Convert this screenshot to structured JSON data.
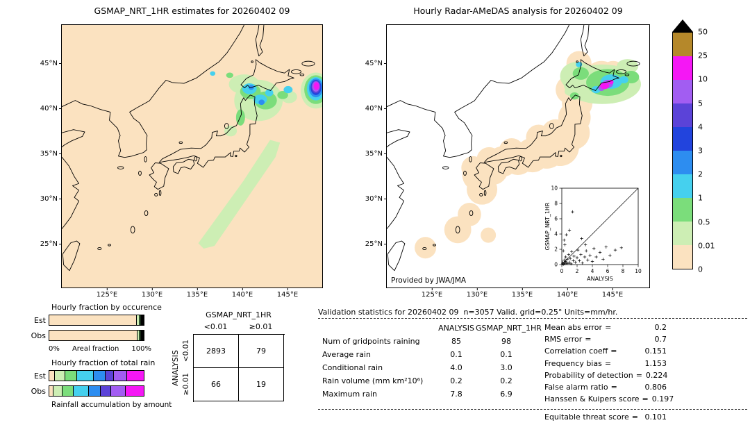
{
  "palette": {
    "peach": "#fbe2c0",
    "palegreen": "#cdeeb4",
    "green": "#7bdd7b",
    "cyan": "#45d0ee",
    "lightblue": "#2d8df0",
    "blue": "#2244dd",
    "indigo": "#5b43d8",
    "purple": "#a25df2",
    "magenta": "#f517f5",
    "brown": "#b5882a",
    "black": "#000000"
  },
  "maps": {
    "left": {
      "lon_ticks": [
        "125°E",
        "130°E",
        "135°E",
        "140°E",
        "145°E"
      ],
      "lat_ticks": [
        "45°N",
        "40°N",
        "35°N",
        "30°N",
        "25°N"
      ],
      "features": [
        [
          "p",
          "palegreen",
          "135.8,24.4 137.0,24.7 140.5,29.8 143.8,34.6 144.3,36.2 143.2,36.5 140.2,31.9 135.2,25.0"
        ],
        [
          "e",
          "palegreen",
          141.9,
          40.9,
          2.7,
          2.3
        ],
        [
          "e",
          "palegreen",
          140.3,
          42.7,
          1.7,
          1.1
        ],
        [
          "e",
          "palegreen",
          145.3,
          41.3,
          0.9,
          0.7
        ],
        [
          "e",
          "palegreen",
          138.8,
          37.5,
          0.7,
          0.6
        ],
        [
          "e",
          "green",
          141.0,
          41.9,
          1.15,
          0.85
        ],
        [
          "e",
          "green",
          142.7,
          40.9,
          1.25,
          1.0
        ],
        [
          "e",
          "green",
          139.9,
          39.0,
          0.5,
          0.9
        ],
        [
          "e",
          "green",
          144.6,
          41.5,
          0.6,
          0.45
        ],
        [
          "e",
          "cyan",
          140.9,
          42.2,
          0.8,
          0.6
        ],
        [
          "e",
          "cyan",
          142.1,
          41.0,
          0.75,
          0.55
        ],
        [
          "e",
          "cyan",
          143.1,
          41.75,
          0.45,
          0.4
        ],
        [
          "e",
          "cyan",
          145.2,
          42.1,
          0.5,
          0.4
        ],
        [
          "e",
          "lightblue",
          141.1,
          42.35,
          0.3,
          0.28
        ],
        [
          "e",
          "lightblue",
          142.25,
          40.7,
          0.33,
          0.3
        ],
        [
          "e",
          "palegreen",
          148.3,
          42.0,
          1.7,
          2.0
        ],
        [
          "e",
          "green",
          148.3,
          42.1,
          1.3,
          1.6
        ],
        [
          "e",
          "cyan",
          148.3,
          42.2,
          1.0,
          1.3
        ],
        [
          "e",
          "lightblue",
          148.3,
          42.3,
          0.78,
          1.05
        ],
        [
          "e",
          "blue",
          148.3,
          42.35,
          0.6,
          0.85
        ],
        [
          "e",
          "indigo",
          148.3,
          42.4,
          0.5,
          0.7
        ],
        [
          "e",
          "purple",
          148.3,
          42.45,
          0.42,
          0.58
        ],
        [
          "e",
          "magenta",
          148.35,
          42.5,
          0.32,
          0.44
        ],
        [
          "e",
          "green",
          138.7,
          43.7,
          0.4,
          0.3
        ],
        [
          "e",
          "cyan",
          136.8,
          43.9,
          0.3,
          0.25
        ]
      ]
    },
    "right": {
      "lon_ticks": [
        "125°E",
        "130°E",
        "135°E",
        "140°E",
        "145°E"
      ],
      "lat_ticks": [
        "45°N",
        "40°N",
        "35°N",
        "30°N",
        "25°N"
      ],
      "coverage": [
        [
          124.3,
          24.5,
          1.2
        ],
        [
          127.9,
          26.5,
          1.5
        ],
        [
          129.2,
          28.2,
          1.3
        ],
        [
          131.3,
          25.9,
          0.85
        ],
        [
          130.6,
          31.0,
          1.7
        ],
        [
          130.2,
          32.6,
          1.8
        ],
        [
          129.6,
          33.4,
          1.3
        ],
        [
          131.8,
          33.2,
          1.7
        ],
        [
          131.4,
          34.3,
          1.4
        ],
        [
          132.9,
          34.1,
          1.7
        ],
        [
          133.9,
          35.3,
          1.4
        ],
        [
          134.6,
          34.4,
          1.8
        ],
        [
          136.2,
          34.8,
          1.9
        ],
        [
          136.9,
          36.8,
          1.4
        ],
        [
          137.8,
          35.3,
          2.0
        ],
        [
          139.3,
          35.7,
          2.1
        ],
        [
          138.8,
          37.2,
          1.6
        ],
        [
          140.7,
          37.3,
          1.9
        ],
        [
          140.9,
          39.0,
          1.8
        ],
        [
          141.2,
          40.6,
          1.7
        ],
        [
          140.4,
          42.1,
          1.6
        ],
        [
          142.3,
          42.9,
          1.9
        ],
        [
          143.9,
          43.4,
          1.9
        ],
        [
          145.2,
          43.8,
          1.5
        ],
        [
          141.4,
          45.0,
          1.4
        ]
      ],
      "features": [
        [
          "e",
          "palegreen",
          144.0,
          42.7,
          4.3,
          2.2
        ],
        [
          "e",
          "palegreen",
          141.2,
          43.6,
          1.9,
          1.6
        ],
        [
          "e",
          "palegreen",
          146.8,
          44.7,
          1.2,
          0.8
        ],
        [
          "e",
          "palegreen",
          140.5,
          41.9,
          0.7,
          0.5
        ],
        [
          "e",
          "green",
          144.6,
          42.9,
          2.4,
          1.5
        ],
        [
          "e",
          "green",
          141.6,
          43.9,
          0.9,
          0.7
        ],
        [
          "e",
          "green",
          147.2,
          43.5,
          0.9,
          0.7
        ],
        [
          "e",
          "green",
          140.9,
          41.4,
          0.5,
          0.4
        ],
        [
          "e",
          "cyan",
          145.0,
          43.0,
          1.2,
          0.8
        ],
        [
          "e",
          "cyan",
          143.3,
          42.1,
          0.5,
          0.4
        ],
        [
          "e",
          "cyan",
          146.4,
          43.2,
          0.5,
          0.4
        ],
        [
          "e",
          "cyan",
          141.4,
          44.9,
          0.35,
          0.3
        ],
        [
          "e",
          "lightblue",
          144.5,
          42.6,
          0.45,
          0.35
        ],
        [
          "e",
          "purple",
          144.6,
          42.75,
          0.6,
          0.45
        ],
        [
          "e",
          "purple",
          143.9,
          42.25,
          0.35,
          0.3
        ],
        [
          "e",
          "magenta",
          144.25,
          42.55,
          0.5,
          0.4
        ],
        [
          "e",
          "magenta",
          144.95,
          42.95,
          0.3,
          0.25
        ]
      ]
    }
  },
  "colorbar": {
    "labels": [
      "50",
      "25",
      "10",
      "5",
      "4",
      "3",
      "2",
      "1",
      "0.5",
      "0.01",
      "0"
    ],
    "colors": [
      "brown",
      "magenta",
      "purple",
      "indigo",
      "blue",
      "lightblue",
      "cyan",
      "green",
      "palegreen",
      "peach"
    ],
    "overflow_color": "black",
    "units": "mm/hr"
  },
  "chart_data": [
    {
      "id": "gsmap-estimate-map",
      "type": "heatmap",
      "title": "GSMAP_NRT_1HR estimates for 20260402 09",
      "units": "mm/hr",
      "lon_range": [
        "120°E",
        "149°E"
      ],
      "lat_range": [
        "20°N",
        "49°N"
      ],
      "levels": [
        "0",
        "0.01",
        "0.5",
        "1",
        "2",
        "3",
        "4",
        "5",
        "10",
        "25",
        "50"
      ],
      "detail": "maps.left"
    },
    {
      "id": "radar-amedas-map",
      "type": "heatmap",
      "title": "Hourly Radar-AMeDAS analysis for 20260402 09",
      "credit": "Provided by JWA/JMA",
      "units": "mm/hr",
      "lon_range": [
        "120°E",
        "149°E"
      ],
      "lat_range": [
        "20°N",
        "49°N"
      ],
      "levels": [
        "0",
        "0.01",
        "0.5",
        "1",
        "2",
        "3",
        "4",
        "5",
        "10",
        "25",
        "50"
      ],
      "detail": "maps.right"
    },
    {
      "id": "hourly-fraction-by-occurrence",
      "type": "bar",
      "title": "Hourly fraction by occurence",
      "xlabel": "Areal fraction",
      "x_ticks": [
        "0%",
        "100%"
      ],
      "stacked": true,
      "unit": "%",
      "series": [
        {
          "name": "Est",
          "segments": [
            [
              "peach",
              93.2
            ],
            [
              "palegreen",
              2.6
            ],
            [
              "green",
              1.6
            ],
            [
              "cyan",
              1.0
            ],
            [
              "lightblue",
              0.6
            ],
            [
              "indigo",
              0.4
            ],
            [
              "purple",
              0.3
            ],
            [
              "magenta",
              0.3
            ]
          ]
        },
        {
          "name": "Obs",
          "segments": [
            [
              "peach",
              94.0
            ],
            [
              "palegreen",
              2.2
            ],
            [
              "green",
              1.5
            ],
            [
              "cyan",
              1.0
            ],
            [
              "lightblue",
              0.5
            ],
            [
              "indigo",
              0.3
            ],
            [
              "purple",
              0.3
            ],
            [
              "magenta",
              0.2
            ]
          ]
        }
      ]
    },
    {
      "id": "hourly-fraction-of-total-rain",
      "type": "bar",
      "title": "Hourly fraction of total rain",
      "caption": "Rainfall accumulation by amount",
      "stacked": true,
      "unit": "%",
      "series": [
        {
          "name": "Est",
          "segments": [
            [
              "peach",
              5
            ],
            [
              "palegreen",
              11
            ],
            [
              "green",
              13
            ],
            [
              "cyan",
              17
            ],
            [
              "lightblue",
              13
            ],
            [
              "indigo",
              9
            ],
            [
              "purple",
              14
            ],
            [
              "magenta",
              18
            ]
          ]
        },
        {
          "name": "Obs",
          "segments": [
            [
              "peach",
              4
            ],
            [
              "palegreen",
              9
            ],
            [
              "green",
              12
            ],
            [
              "cyan",
              16
            ],
            [
              "lightblue",
              13
            ],
            [
              "indigo",
              11
            ],
            [
              "purple",
              15
            ],
            [
              "magenta",
              20
            ]
          ]
        }
      ]
    },
    {
      "id": "inset-scatter",
      "type": "scatter",
      "xlabel": "ANALYSIS",
      "ylabel": "GSMAP_NRT_1HR",
      "xlim": [
        0,
        10
      ],
      "ylim": [
        0,
        10
      ],
      "ticks": [
        0,
        2,
        4,
        6,
        8,
        10
      ],
      "diagonal": true,
      "points": [
        [
          0.1,
          0.1
        ],
        [
          0.15,
          0.3
        ],
        [
          0.2,
          0.05
        ],
        [
          0.3,
          0.2
        ],
        [
          0.3,
          0.6
        ],
        [
          0.4,
          0.1
        ],
        [
          0.5,
          0.4
        ],
        [
          0.5,
          1.0
        ],
        [
          0.6,
          0.2
        ],
        [
          0.7,
          0.7
        ],
        [
          0.8,
          0.15
        ],
        [
          0.9,
          1.3
        ],
        [
          1.0,
          0.3
        ],
        [
          1.1,
          0.8
        ],
        [
          1.2,
          0.1
        ],
        [
          1.3,
          1.7
        ],
        [
          1.5,
          0.5
        ],
        [
          1.6,
          1.1
        ],
        [
          1.8,
          0.3
        ],
        [
          2.0,
          0.9
        ],
        [
          2.1,
          1.9
        ],
        [
          2.3,
          0.5
        ],
        [
          2.5,
          1.3
        ],
        [
          2.7,
          0.2
        ],
        [
          3.0,
          1.0
        ],
        [
          3.2,
          1.8
        ],
        [
          3.4,
          0.6
        ],
        [
          3.7,
          1.2
        ],
        [
          4.0,
          0.4
        ],
        [
          4.2,
          2.1
        ],
        [
          4.5,
          1.0
        ],
        [
          5.0,
          1.6
        ],
        [
          5.4,
          0.7
        ],
        [
          5.8,
          2.3
        ],
        [
          6.3,
          1.2
        ],
        [
          7.0,
          1.9
        ],
        [
          7.8,
          2.2
        ],
        [
          0.2,
          1.8
        ],
        [
          0.4,
          2.6
        ],
        [
          0.6,
          3.9
        ],
        [
          1.0,
          4.5
        ],
        [
          0.3,
          3.2
        ],
        [
          1.4,
          6.9
        ],
        [
          2.6,
          3.4
        ],
        [
          3.1,
          2.6
        ]
      ]
    },
    {
      "id": "contingency-table",
      "type": "table",
      "title": "GSMAP_NRT_1HR",
      "side_label": "ANALYSIS",
      "col_headers": [
        "<0.01",
        "≥0.01"
      ],
      "row_headers": [
        "<0.01",
        "≥0.01"
      ],
      "values": [
        [
          "2893",
          "79"
        ],
        [
          "66",
          "19"
        ]
      ]
    },
    {
      "id": "validation-stats",
      "type": "table",
      "header": "Validation statistics for 20260402 09  n=3057 Valid. grid=0.25° Units=mm/hr.",
      "col_headers": [
        "ANALYSIS",
        "GSMAP_NRT_1HR"
      ],
      "rows": [
        [
          "Num of gridpoints raining",
          "85",
          "98"
        ],
        [
          "Average rain",
          "0.1",
          "0.1"
        ],
        [
          "Conditional rain",
          "4.0",
          "3.0"
        ],
        [
          "Rain volume (mm km²10⁶)",
          "0.2",
          "0.2"
        ],
        [
          "Maximum rain",
          "7.8",
          "6.9"
        ]
      ],
      "stats": [
        [
          "Mean abs error",
          "0.2"
        ],
        [
          "RMS error",
          "0.7"
        ],
        [
          "Correlation coeff",
          "0.151"
        ],
        [
          "Frequency bias",
          "1.153"
        ],
        [
          "Probability of detection",
          "0.224"
        ],
        [
          "False alarm ratio",
          "0.806"
        ],
        [
          "Hanssen & Kuipers score",
          "0.197"
        ],
        [
          "Equitable threat score",
          "0.101"
        ]
      ]
    }
  ]
}
